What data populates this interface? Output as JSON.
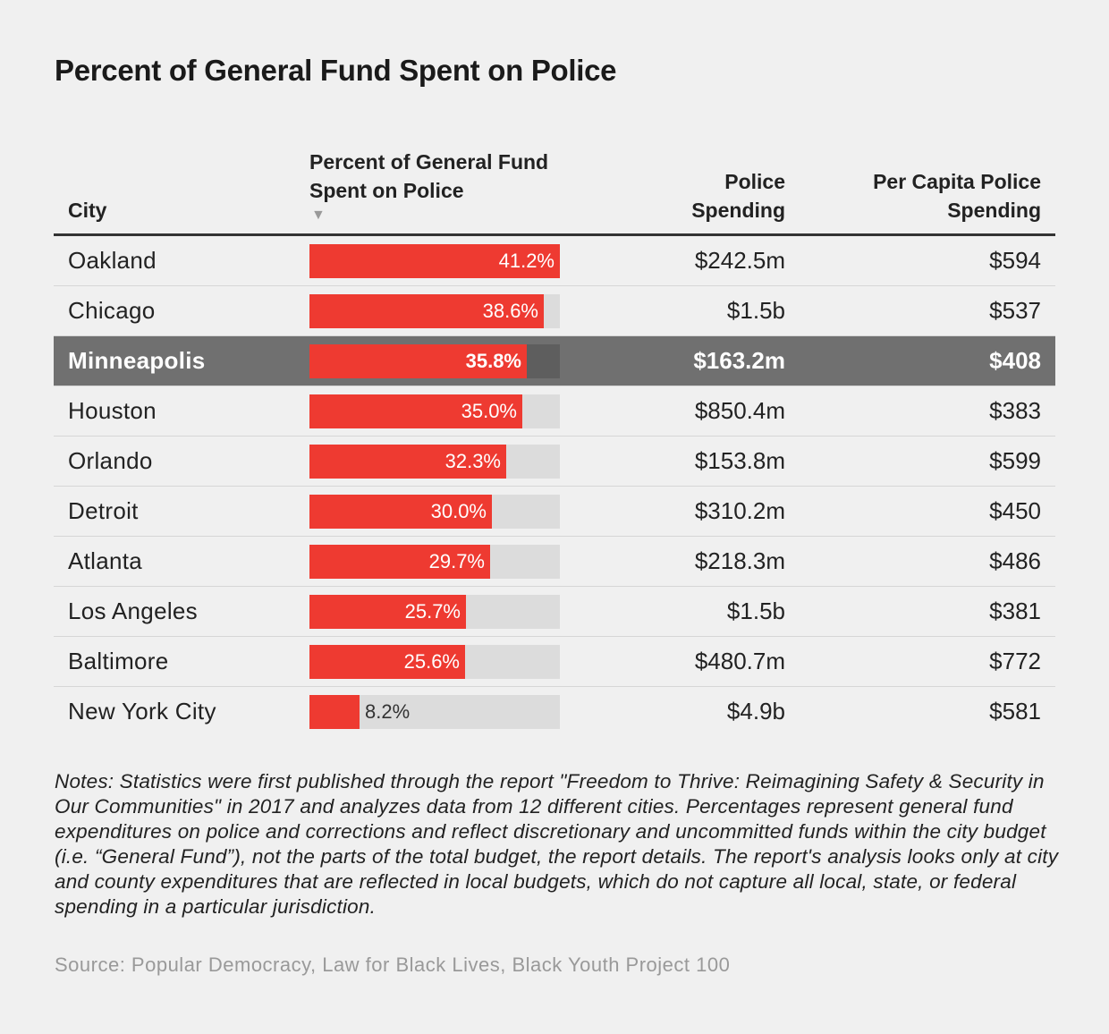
{
  "title": "Percent of General Fund Spent on Police",
  "headers": {
    "city": "City",
    "pct": "Percent of General Fund Spent on Police",
    "sort_icon": "▼",
    "spending_line1": "Police",
    "spending_line2": "Spending",
    "per_capita_line1": "Per Capita Police",
    "per_capita_line2": "Spending"
  },
  "colors": {
    "bar": "#ee3a31",
    "bar_track": "#dcdcdc",
    "highlight_row": "#707070"
  },
  "chart_data": {
    "type": "table",
    "bar_max": 41.2,
    "columns": [
      "City",
      "Percent of General Fund Spent on Police",
      "Police Spending",
      "Per Capita Police Spending"
    ],
    "rows": [
      {
        "city": "Oakland",
        "pct": 41.2,
        "pct_label": "41.2%",
        "spending": "$242.5m",
        "per_capita": "$594",
        "highlight": false
      },
      {
        "city": "Chicago",
        "pct": 38.6,
        "pct_label": "38.6%",
        "spending": "$1.5b",
        "per_capita": "$537",
        "highlight": false
      },
      {
        "city": "Minneapolis",
        "pct": 35.8,
        "pct_label": "35.8%",
        "spending": "$163.2m",
        "per_capita": "$408",
        "highlight": true
      },
      {
        "city": "Houston",
        "pct": 35.0,
        "pct_label": "35.0%",
        "spending": "$850.4m",
        "per_capita": "$383",
        "highlight": false
      },
      {
        "city": "Orlando",
        "pct": 32.3,
        "pct_label": "32.3%",
        "spending": "$153.8m",
        "per_capita": "$599",
        "highlight": false
      },
      {
        "city": "Detroit",
        "pct": 30.0,
        "pct_label": "30.0%",
        "spending": "$310.2m",
        "per_capita": "$450",
        "highlight": false
      },
      {
        "city": "Atlanta",
        "pct": 29.7,
        "pct_label": "29.7%",
        "spending": "$218.3m",
        "per_capita": "$486",
        "highlight": false
      },
      {
        "city": "Los Angeles",
        "pct": 25.7,
        "pct_label": "25.7%",
        "spending": "$1.5b",
        "per_capita": "$381",
        "highlight": false
      },
      {
        "city": "Baltimore",
        "pct": 25.6,
        "pct_label": "25.6%",
        "spending": "$480.7m",
        "per_capita": "$772",
        "highlight": false
      },
      {
        "city": "New York City",
        "pct": 8.2,
        "pct_label": "8.2%",
        "spending": "$4.9b",
        "per_capita": "$581",
        "highlight": false
      }
    ]
  },
  "notes": "Notes: Statistics were first published through the report \"Freedom to Thrive: Reimagining Safety & Security in Our Communities\" in 2017 and analyzes data from 12 different cities. Percentages represent general fund expenditures on police and corrections and reflect discretionary and uncommitted funds within the city budget (i.e. “General Fund”), not the parts of the total budget, the report details. The report's analysis looks only at city and county expenditures that are reflected in local budgets, which do not capture all local, state, or federal spending in a particular jurisdiction.",
  "source": "Source: Popular Democracy, Law for Black Lives, Black Youth Project 100"
}
